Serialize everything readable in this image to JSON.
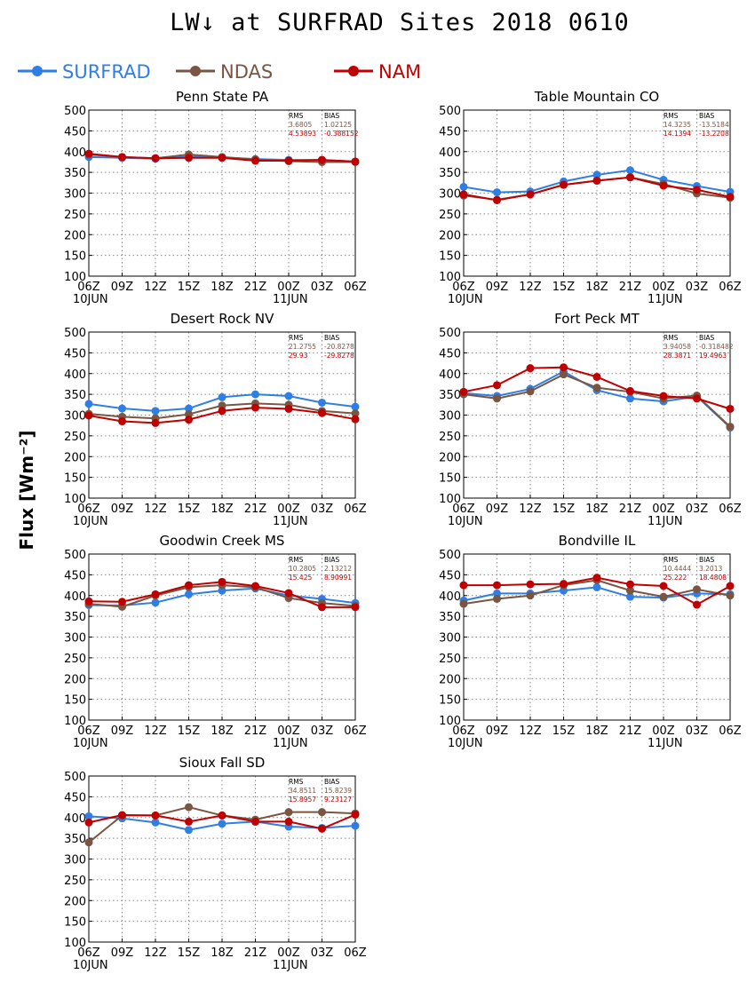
{
  "title": "LW↓ at SURFRAD Sites    2018 0610",
  "ylabel": "Flux [Wm⁻²]",
  "colors": {
    "SURFRAD": "#2f7ee6",
    "NDAS": "#7a5542",
    "NAM": "#c00000"
  },
  "legend": [
    {
      "name": "SURFRAD",
      "color": "#2f7ee6"
    },
    {
      "name": "NDAS",
      "color": "#7a5542"
    },
    {
      "name": "NAM",
      "color": "#c00000"
    }
  ],
  "chart_data": [
    {
      "type": "line",
      "title": "Penn State PA",
      "categories": [
        "06Z",
        "09Z",
        "12Z",
        "15Z",
        "18Z",
        "21Z",
        "00Z",
        "03Z",
        "06Z"
      ],
      "date_labels": [
        "10JUN",
        "11JUN"
      ],
      "ylim": [
        100,
        500
      ],
      "yticks": [
        100,
        150,
        200,
        250,
        300,
        350,
        400,
        450,
        500
      ],
      "grid": true,
      "stats": {
        "header": [
          "RMS",
          "BIAS"
        ],
        "ndas": [
          "3.6805",
          "1.02125"
        ],
        "nam": [
          "4.53893",
          "-0.388152"
        ]
      },
      "series": [
        {
          "name": "SURFRAD",
          "values": [
            387,
            385,
            383,
            388,
            386,
            382,
            380,
            380,
            376
          ]
        },
        {
          "name": "NDAS",
          "values": [
            393,
            387,
            384,
            393,
            387,
            381,
            377,
            375,
            375
          ]
        },
        {
          "name": "NAM",
          "values": [
            395,
            387,
            384,
            385,
            385,
            378,
            378,
            380,
            376
          ]
        }
      ]
    },
    {
      "type": "line",
      "title": "Table Mountain CO",
      "categories": [
        "06Z",
        "09Z",
        "12Z",
        "15Z",
        "18Z",
        "21Z",
        "00Z",
        "03Z",
        "06Z"
      ],
      "date_labels": [
        "10JUN",
        "11JUN"
      ],
      "ylim": [
        100,
        500
      ],
      "yticks": [
        100,
        150,
        200,
        250,
        300,
        350,
        400,
        450,
        500
      ],
      "grid": true,
      "stats": {
        "header": [
          "RMS",
          "BIAS"
        ],
        "ndas": [
          "14.3235",
          "-13.5184"
        ],
        "nam": [
          "14.1394",
          "-13.2208"
        ]
      },
      "series": [
        {
          "name": "SURFRAD",
          "values": [
            315,
            302,
            304,
            328,
            344,
            355,
            332,
            317,
            303
          ]
        },
        {
          "name": "NDAS",
          "values": [
            294,
            284,
            297,
            320,
            330,
            338,
            322,
            299,
            289
          ]
        },
        {
          "name": "NAM",
          "values": [
            297,
            283,
            297,
            320,
            330,
            338,
            318,
            308,
            291
          ]
        }
      ]
    },
    {
      "type": "line",
      "title": "Desert Rock NV",
      "categories": [
        "06Z",
        "09Z",
        "12Z",
        "15Z",
        "18Z",
        "21Z",
        "00Z",
        "03Z",
        "06Z"
      ],
      "date_labels": [
        "10JUN",
        "11JUN"
      ],
      "ylim": [
        100,
        500
      ],
      "yticks": [
        100,
        150,
        200,
        250,
        300,
        350,
        400,
        450,
        500
      ],
      "grid": true,
      "stats": {
        "header": [
          "RMS",
          "BIAS"
        ],
        "ndas": [
          "21.2755",
          "-20.8278"
        ],
        "nam": [
          "29.93",
          "-29.8278"
        ]
      },
      "series": [
        {
          "name": "SURFRAD",
          "values": [
            327,
            316,
            310,
            316,
            343,
            350,
            346,
            330,
            320
          ]
        },
        {
          "name": "NDAS",
          "values": [
            303,
            296,
            292,
            302,
            323,
            328,
            325,
            310,
            304
          ]
        },
        {
          "name": "NAM",
          "values": [
            299,
            285,
            281,
            289,
            310,
            318,
            315,
            305,
            290
          ]
        }
      ]
    },
    {
      "type": "line",
      "title": "Fort Peck MT",
      "categories": [
        "06Z",
        "09Z",
        "12Z",
        "15Z",
        "18Z",
        "21Z",
        "00Z",
        "03Z",
        "06Z"
      ],
      "date_labels": [
        "10JUN",
        "11JUN"
      ],
      "ylim": [
        100,
        500
      ],
      "yticks": [
        100,
        150,
        200,
        250,
        300,
        350,
        400,
        450,
        500
      ],
      "grid": true,
      "stats": {
        "header": [
          "RMS",
          "BIAS"
        ],
        "ndas": [
          "3.94058",
          "-0.318482"
        ],
        "nam": [
          "28.3871",
          "19.4963"
        ]
      },
      "series": [
        {
          "name": "SURFRAD",
          "values": [
            353,
            346,
            363,
            405,
            360,
            340,
            333,
            345,
            270
          ]
        },
        {
          "name": "NDAS",
          "values": [
            350,
            340,
            357,
            398,
            366,
            356,
            340,
            347,
            272
          ]
        },
        {
          "name": "NAM",
          "values": [
            356,
            372,
            413,
            415,
            392,
            358,
            346,
            340,
            315
          ]
        }
      ]
    },
    {
      "type": "line",
      "title": "Goodwin Creek MS",
      "categories": [
        "06Z",
        "09Z",
        "12Z",
        "15Z",
        "18Z",
        "21Z",
        "00Z",
        "03Z",
        "06Z"
      ],
      "date_labels": [
        "10JUN",
        "11JUN"
      ],
      "ylim": [
        100,
        500
      ],
      "yticks": [
        100,
        150,
        200,
        250,
        300,
        350,
        400,
        450,
        500
      ],
      "grid": true,
      "stats": {
        "header": [
          "RMS",
          "BIAS"
        ],
        "ndas": [
          "10.2805",
          "2.13212"
        ],
        "nam": [
          "15.425",
          "8.90991"
        ]
      },
      "series": [
        {
          "name": "SURFRAD",
          "values": [
            377,
            376,
            383,
            403,
            412,
            417,
            400,
            392,
            382
          ]
        },
        {
          "name": "NDAS",
          "values": [
            380,
            373,
            400,
            420,
            425,
            420,
            394,
            382,
            375
          ]
        },
        {
          "name": "NAM",
          "values": [
            386,
            385,
            403,
            425,
            433,
            423,
            406,
            372,
            372
          ]
        }
      ]
    },
    {
      "type": "line",
      "title": "Bondville IL",
      "categories": [
        "06Z",
        "09Z",
        "12Z",
        "15Z",
        "18Z",
        "21Z",
        "00Z",
        "03Z",
        "06Z"
      ],
      "date_labels": [
        "10JUN",
        "11JUN"
      ],
      "ylim": [
        100,
        500
      ],
      "yticks": [
        100,
        150,
        200,
        250,
        300,
        350,
        400,
        450,
        500
      ],
      "grid": true,
      "stats": {
        "header": [
          "RMS",
          "BIAS"
        ],
        "ndas": [
          "10.4444",
          "3.2013"
        ],
        "nam": [
          "25.222",
          "18.4808"
        ]
      },
      "series": [
        {
          "name": "SURFRAD",
          "values": [
            388,
            405,
            405,
            412,
            420,
            397,
            395,
            405,
            403
          ]
        },
        {
          "name": "NDAS",
          "values": [
            380,
            392,
            400,
            425,
            437,
            412,
            397,
            415,
            400
          ]
        },
        {
          "name": "NAM",
          "values": [
            425,
            425,
            427,
            428,
            443,
            427,
            423,
            378,
            423
          ]
        }
      ]
    },
    {
      "type": "line",
      "title": "Sioux Fall SD",
      "categories": [
        "06Z",
        "09Z",
        "12Z",
        "15Z",
        "18Z",
        "21Z",
        "00Z",
        "03Z",
        "06Z"
      ],
      "date_labels": [
        "10JUN",
        "11JUN"
      ],
      "ylim": [
        100,
        500
      ],
      "yticks": [
        100,
        150,
        200,
        250,
        300,
        350,
        400,
        450,
        500
      ],
      "grid": true,
      "stats": {
        "header": [
          "RMS",
          "BIAS"
        ],
        "ndas": [
          "34.8511",
          "15.8239"
        ],
        "nam": [
          "15.8957",
          "9.23127"
        ]
      },
      "series": [
        {
          "name": "SURFRAD",
          "values": [
            403,
            398,
            388,
            370,
            385,
            390,
            378,
            375,
            380
          ]
        },
        {
          "name": "NDAS",
          "values": [
            340,
            405,
            405,
            425,
            405,
            395,
            413,
            413,
            410
          ]
        },
        {
          "name": "NAM",
          "values": [
            388,
            406,
            405,
            390,
            405,
            390,
            390,
            373,
            407
          ]
        }
      ]
    }
  ]
}
